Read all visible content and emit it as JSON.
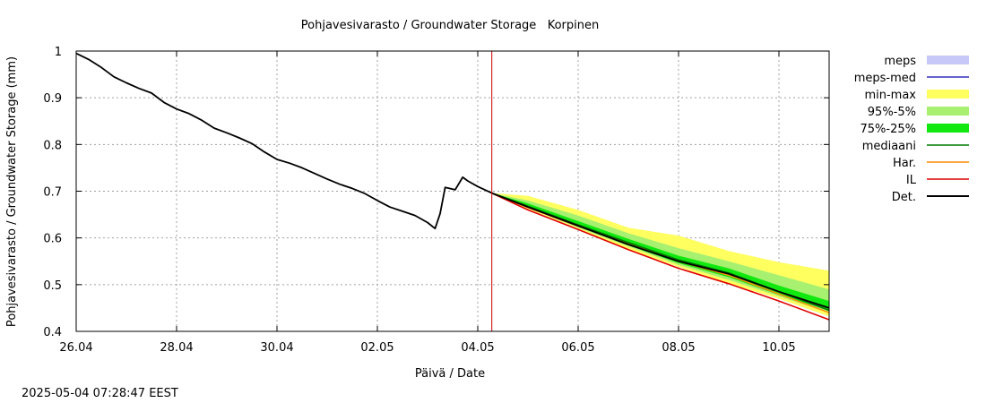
{
  "chart_data": {
    "type": "line",
    "title": "Pohjavesivarasto / Groundwater Storage   Korpinen",
    "xlabel": "Päivä / Date",
    "ylabel": "Pohjavesivarasto / Groundwater Storage (mm)",
    "timestamp": "2025-05-04 07:28:47 EEST",
    "xlim": [
      0,
      15
    ],
    "ylim": [
      0.4,
      1.0
    ],
    "grid": true,
    "legend_position": "outside-right",
    "x_ticks": [
      {
        "x": 0,
        "label": "26.04"
      },
      {
        "x": 2,
        "label": "28.04"
      },
      {
        "x": 4,
        "label": "30.04"
      },
      {
        "x": 6,
        "label": "02.05"
      },
      {
        "x": 8,
        "label": "04.05"
      },
      {
        "x": 10,
        "label": "06.05"
      },
      {
        "x": 12,
        "label": "08.05"
      },
      {
        "x": 14,
        "label": "10.05"
      }
    ],
    "y_ticks": [
      {
        "y": 0.4,
        "label": "0.4"
      },
      {
        "y": 0.5,
        "label": "0.5"
      },
      {
        "y": 0.6,
        "label": "0.6"
      },
      {
        "y": 0.7,
        "label": "0.7"
      },
      {
        "y": 0.8,
        "label": "0.8"
      },
      {
        "y": 0.9,
        "label": "0.9"
      },
      {
        "y": 1.0,
        "label": "1"
      }
    ],
    "forecast_start_x": 8.28,
    "colors": {
      "meps": "#c8c8f8",
      "meps_med": "#3030c0",
      "min_max": "#ffff60",
      "p95_5": "#a8f070",
      "p75_25": "#10e810",
      "mediaani": "#007800",
      "har": "#ff8c00",
      "il": "#e00000",
      "det": "#000000",
      "forecast_line": "#d00000",
      "grid": "#a0a0a0"
    },
    "legend": [
      {
        "key": "meps",
        "label": "meps",
        "style": "band"
      },
      {
        "key": "meps_med",
        "label": "meps-med",
        "style": "line"
      },
      {
        "key": "min_max",
        "label": "min-max",
        "style": "band"
      },
      {
        "key": "p95_5",
        "label": "95%-5%",
        "style": "band"
      },
      {
        "key": "p75_25",
        "label": "75%-25%",
        "style": "band"
      },
      {
        "key": "mediaani",
        "label": "mediaani",
        "style": "line"
      },
      {
        "key": "har",
        "label": "Har.",
        "style": "line"
      },
      {
        "key": "il",
        "label": "IL",
        "style": "line"
      },
      {
        "key": "det",
        "label": "Det.",
        "style": "line"
      }
    ],
    "series": [
      {
        "name": "Det. (observed)",
        "x": [
          0,
          0.25,
          0.5,
          0.75,
          1.0,
          1.25,
          1.5,
          1.75,
          2.0,
          2.25,
          2.5,
          2.75,
          3.0,
          3.25,
          3.5,
          3.75,
          4.0,
          4.25,
          4.5,
          4.75,
          5.0,
          5.25,
          5.5,
          5.75,
          6.0,
          6.25,
          6.5,
          6.75,
          7.0,
          7.15,
          7.25,
          7.35,
          7.55,
          7.7,
          7.8,
          8.0,
          8.28
        ],
        "values": [
          0.995,
          0.982,
          0.965,
          0.945,
          0.932,
          0.92,
          0.91,
          0.89,
          0.876,
          0.866,
          0.852,
          0.835,
          0.825,
          0.814,
          0.802,
          0.784,
          0.768,
          0.76,
          0.75,
          0.738,
          0.726,
          0.715,
          0.706,
          0.695,
          0.68,
          0.666,
          0.657,
          0.648,
          0.633,
          0.62,
          0.652,
          0.708,
          0.703,
          0.73,
          0.722,
          0.71,
          0.696
        ]
      },
      {
        "name": "mediaani",
        "x": [
          8.28,
          9,
          10,
          11,
          12,
          13,
          14,
          15
        ],
        "values": [
          0.696,
          0.668,
          0.628,
          0.59,
          0.553,
          0.525,
          0.485,
          0.445
        ]
      },
      {
        "name": "Har.",
        "x": [
          8.28,
          9,
          10,
          11,
          12,
          13,
          14,
          15
        ],
        "values": [
          0.696,
          0.665,
          0.625,
          0.588,
          0.55,
          0.52,
          0.48,
          0.44
        ]
      },
      {
        "name": "IL",
        "x": [
          8.28,
          9,
          10,
          11,
          12,
          13,
          14,
          15
        ],
        "values": [
          0.696,
          0.66,
          0.618,
          0.575,
          0.535,
          0.502,
          0.465,
          0.425
        ]
      },
      {
        "name": "Det. (forecast)",
        "x": [
          8.28,
          9,
          10,
          11,
          12,
          13,
          14,
          15
        ],
        "values": [
          0.696,
          0.666,
          0.626,
          0.586,
          0.55,
          0.523,
          0.485,
          0.45
        ]
      }
    ],
    "bands": [
      {
        "name": "min-max",
        "x": [
          8.28,
          9,
          10,
          11,
          12,
          13,
          14,
          15
        ],
        "upper": [
          0.696,
          0.69,
          0.66,
          0.622,
          0.605,
          0.572,
          0.548,
          0.53
        ],
        "lower": [
          0.696,
          0.662,
          0.62,
          0.575,
          0.538,
          0.502,
          0.47,
          0.432
        ]
      },
      {
        "name": "95%-5%",
        "x": [
          8.28,
          9,
          10,
          11,
          12,
          13,
          14,
          15
        ],
        "upper": [
          0.696,
          0.68,
          0.648,
          0.61,
          0.578,
          0.55,
          0.52,
          0.49
        ],
        "lower": [
          0.696,
          0.664,
          0.622,
          0.582,
          0.542,
          0.51,
          0.475,
          0.44
        ]
      },
      {
        "name": "75%-25%",
        "x": [
          8.28,
          9,
          10,
          11,
          12,
          13,
          14,
          15
        ],
        "upper": [
          0.696,
          0.674,
          0.636,
          0.598,
          0.562,
          0.535,
          0.498,
          0.465
        ],
        "lower": [
          0.696,
          0.666,
          0.624,
          0.584,
          0.546,
          0.516,
          0.478,
          0.445
        ]
      }
    ]
  }
}
